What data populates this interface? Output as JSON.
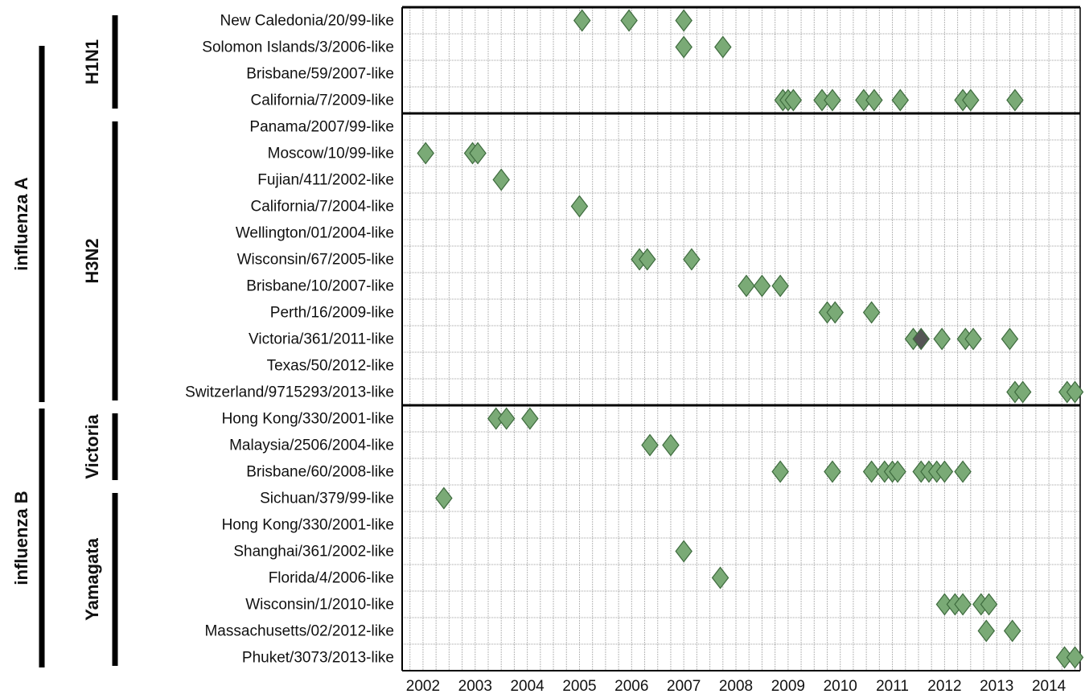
{
  "chart_data": {
    "type": "scatter",
    "title": "",
    "xlabel": "",
    "ylabel": "",
    "x_ticks": [
      "2002",
      "2003",
      "2004",
      "2005",
      "2006",
      "2007",
      "2008",
      "2009",
      "2010",
      "2011",
      "2012",
      "2013",
      "2014"
    ],
    "xlim": [
      2001.6,
      2014.6
    ],
    "grid": true,
    "marker": "diamond",
    "colors": {
      "default": "#7aaa76",
      "highlight": "#555555"
    },
    "rows": [
      "New Caledonia/20/99-like",
      "Solomon Islands/3/2006-like",
      "Brisbane/59/2007-like",
      "California/7/2009-like",
      "Panama/2007/99-like",
      "Moscow/10/99-like",
      "Fujian/411/2002-like",
      "California/7/2004-like",
      "Wellington/01/2004-like",
      "Wisconsin/67/2005-like",
      "Brisbane/10/2007-like",
      "Perth/16/2009-like",
      "Victoria/361/2011-like",
      "Texas/50/2012-like",
      "Switzerland/9715293/2013-like",
      "Hong Kong/330/2001-like",
      "Malaysia/2506/2004-like",
      "Brisbane/60/2008-like",
      "Sichuan/379/99-like",
      "Hong Kong/330/2001-like",
      "Shanghai/361/2002-like",
      "Florida/4/2006-like",
      "Wisconsin/1/2010-like",
      "Massachusetts/02/2012-like",
      "Phuket/3073/2013-like"
    ],
    "groups": [
      {
        "label": "influenza A",
        "rows": [
          0,
          14
        ]
      },
      {
        "label": "influenza B",
        "rows": [
          15,
          24
        ]
      }
    ],
    "subgroups": [
      {
        "label": "H1N1",
        "rows": [
          0,
          3
        ]
      },
      {
        "label": "H3N2",
        "rows": [
          4,
          14
        ]
      },
      {
        "label": "Victoria",
        "rows": [
          15,
          17
        ]
      },
      {
        "label": "Yamagata",
        "rows": [
          18,
          24
        ]
      }
    ],
    "points": [
      {
        "row": 0,
        "x": 2005.05
      },
      {
        "row": 0,
        "x": 2005.95
      },
      {
        "row": 0,
        "x": 2007.0
      },
      {
        "row": 1,
        "x": 2007.0
      },
      {
        "row": 1,
        "x": 2007.75
      },
      {
        "row": 3,
        "x": 2008.9
      },
      {
        "row": 3,
        "x": 2009.0
      },
      {
        "row": 3,
        "x": 2009.1
      },
      {
        "row": 3,
        "x": 2009.65
      },
      {
        "row": 3,
        "x": 2009.85
      },
      {
        "row": 3,
        "x": 2010.45
      },
      {
        "row": 3,
        "x": 2010.65
      },
      {
        "row": 3,
        "x": 2011.15
      },
      {
        "row": 3,
        "x": 2012.35
      },
      {
        "row": 3,
        "x": 2012.5
      },
      {
        "row": 3,
        "x": 2013.35
      },
      {
        "row": 5,
        "x": 2002.05
      },
      {
        "row": 5,
        "x": 2002.95
      },
      {
        "row": 5,
        "x": 2003.05
      },
      {
        "row": 6,
        "x": 2003.5
      },
      {
        "row": 7,
        "x": 2005.0
      },
      {
        "row": 9,
        "x": 2006.15
      },
      {
        "row": 9,
        "x": 2006.3
      },
      {
        "row": 9,
        "x": 2007.15
      },
      {
        "row": 10,
        "x": 2008.2
      },
      {
        "row": 10,
        "x": 2008.5
      },
      {
        "row": 10,
        "x": 2008.85
      },
      {
        "row": 11,
        "x": 2009.75
      },
      {
        "row": 11,
        "x": 2009.9
      },
      {
        "row": 11,
        "x": 2010.6
      },
      {
        "row": 12,
        "x": 2011.4
      },
      {
        "row": 12,
        "x": 2011.55,
        "highlight": true
      },
      {
        "row": 12,
        "x": 2011.95
      },
      {
        "row": 12,
        "x": 2012.4
      },
      {
        "row": 12,
        "x": 2012.55
      },
      {
        "row": 12,
        "x": 2013.25
      },
      {
        "row": 14,
        "x": 2013.35
      },
      {
        "row": 14,
        "x": 2013.5
      },
      {
        "row": 14,
        "x": 2014.35
      },
      {
        "row": 14,
        "x": 2014.5
      },
      {
        "row": 15,
        "x": 2003.4
      },
      {
        "row": 15,
        "x": 2003.6
      },
      {
        "row": 15,
        "x": 2004.05
      },
      {
        "row": 16,
        "x": 2006.35
      },
      {
        "row": 16,
        "x": 2006.75
      },
      {
        "row": 17,
        "x": 2008.85
      },
      {
        "row": 17,
        "x": 2009.85
      },
      {
        "row": 17,
        "x": 2010.6
      },
      {
        "row": 17,
        "x": 2010.85
      },
      {
        "row": 17,
        "x": 2011.0
      },
      {
        "row": 17,
        "x": 2011.1
      },
      {
        "row": 17,
        "x": 2011.55
      },
      {
        "row": 17,
        "x": 2011.7
      },
      {
        "row": 17,
        "x": 2011.85
      },
      {
        "row": 17,
        "x": 2012.0
      },
      {
        "row": 17,
        "x": 2012.35
      },
      {
        "row": 18,
        "x": 2002.4
      },
      {
        "row": 20,
        "x": 2007.0
      },
      {
        "row": 21,
        "x": 2007.7
      },
      {
        "row": 22,
        "x": 2012.0
      },
      {
        "row": 22,
        "x": 2012.2
      },
      {
        "row": 22,
        "x": 2012.35
      },
      {
        "row": 22,
        "x": 2012.7
      },
      {
        "row": 22,
        "x": 2012.85
      },
      {
        "row": 23,
        "x": 2012.8
      },
      {
        "row": 23,
        "x": 2013.3
      },
      {
        "row": 24,
        "x": 2014.3
      },
      {
        "row": 24,
        "x": 2014.5
      }
    ]
  }
}
